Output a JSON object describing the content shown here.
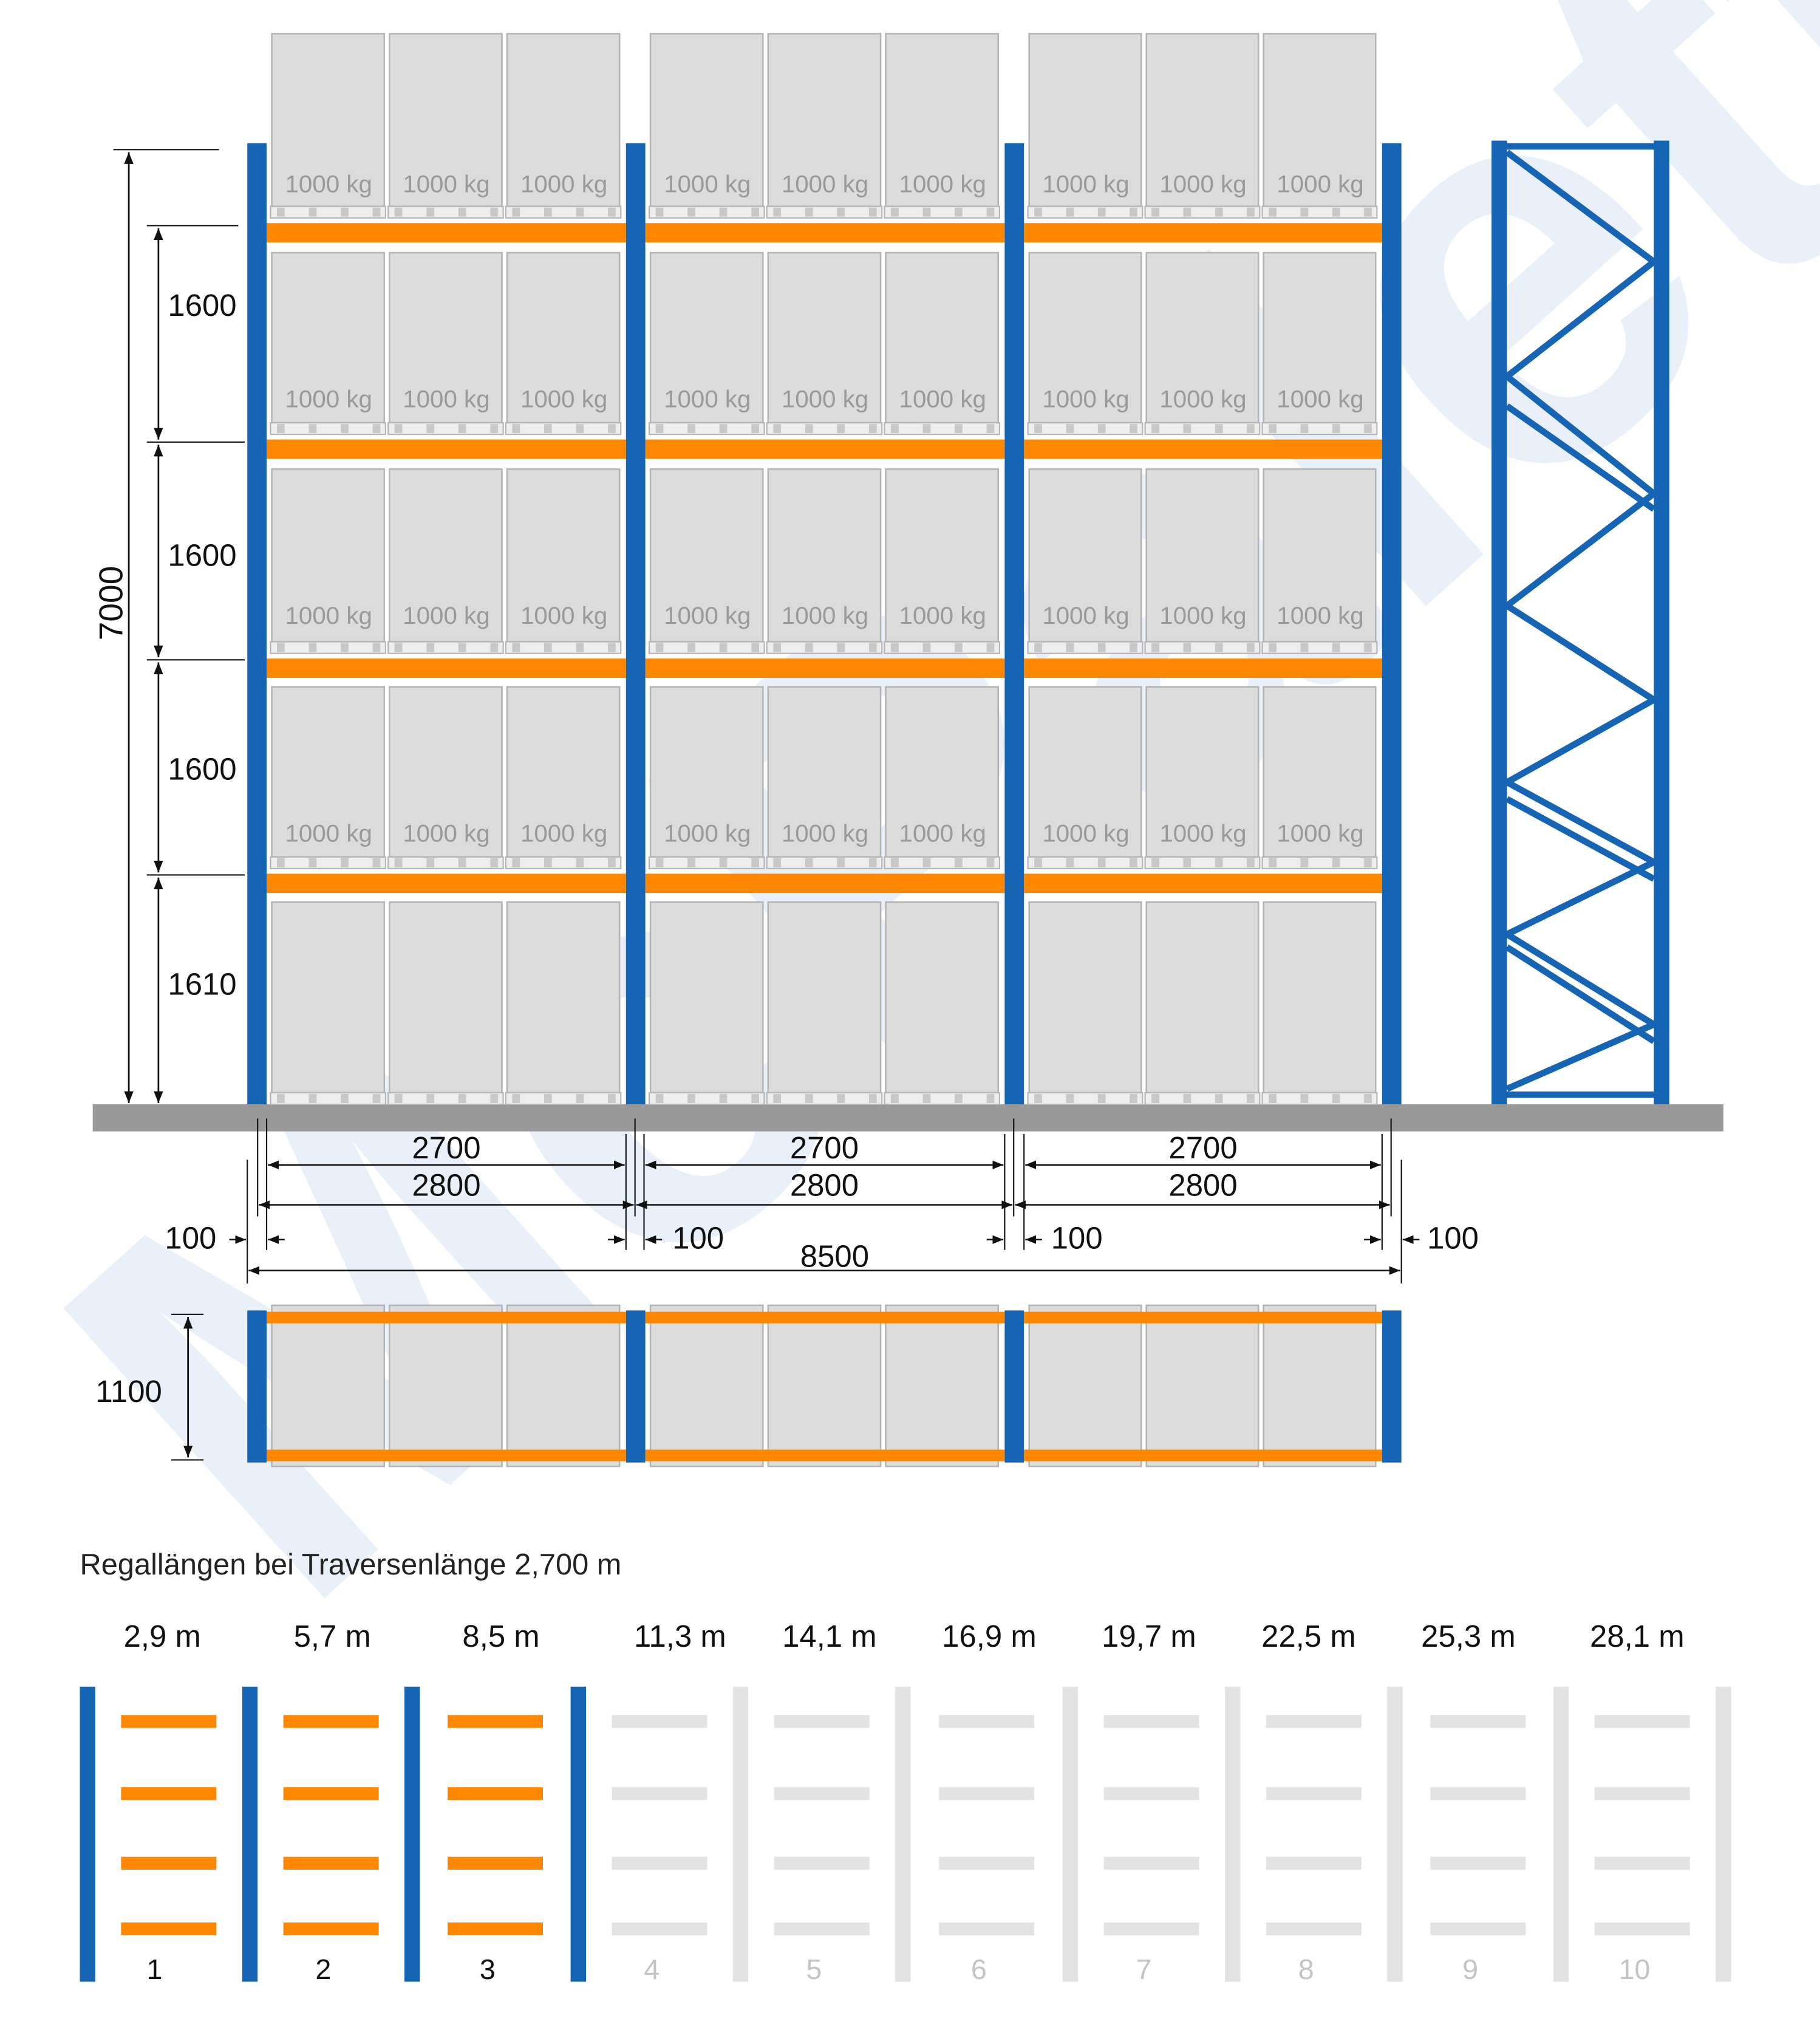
{
  "colors": {
    "upright": "#1565b4",
    "beam": "#ff8800",
    "pallet_fill": "#dcdcdc",
    "pallet_stroke": "#b4b4b4",
    "floor": "#999999",
    "inactive": "#e3e3e3",
    "watermark": "#cfe0f4"
  },
  "front_view": {
    "load_label": "1000 kg",
    "bays": 3,
    "pallets_per_level": 3,
    "heights": {
      "total": "7000",
      "levels": [
        "1600",
        "1600",
        "1600",
        "1610"
      ]
    },
    "widths": {
      "bays": [
        {
          "clear": "2700",
          "centers": "2800"
        },
        {
          "clear": "2700",
          "centers": "2800"
        },
        {
          "clear": "2700",
          "centers": "2800"
        }
      ],
      "upright_widths": [
        "100",
        "100",
        "100",
        "100"
      ],
      "total": "8500"
    }
  },
  "side_frame": {
    "icon": "braced-upright-frame"
  },
  "top_view": {
    "depth": "1100"
  },
  "config": {
    "title": "Regallängen bei Traversenlänge 2,700 m",
    "active_count": 3,
    "lengths": [
      "2,9 m",
      "5,7 m",
      "8,5 m",
      "11,3 m",
      "14,1 m",
      "16,9 m",
      "19,7 m",
      "22,5 m",
      "25,3 m",
      "28,1 m"
    ],
    "numbers": [
      "1",
      "2",
      "3",
      "4",
      "5",
      "6",
      "7",
      "8",
      "9",
      "10"
    ]
  },
  "watermark": {
    "text": "McPalettenregal.de"
  }
}
